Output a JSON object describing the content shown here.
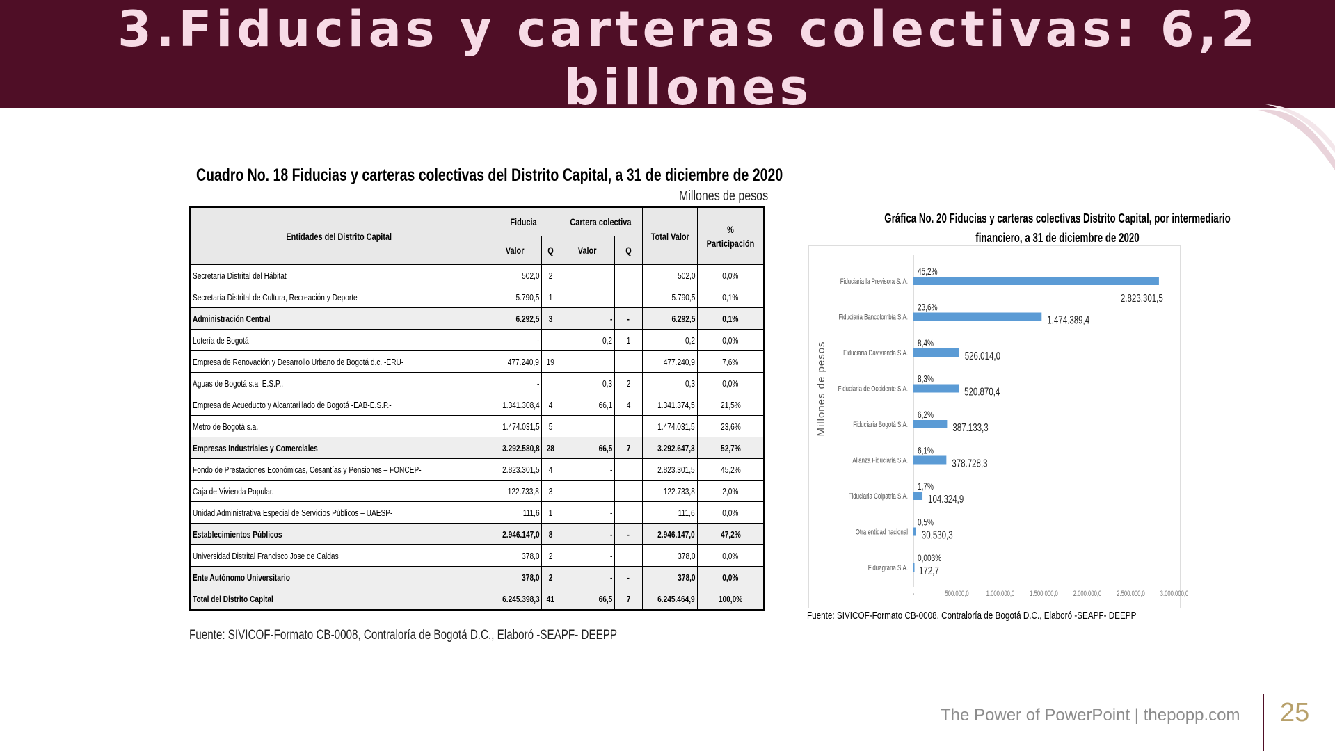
{
  "slide": {
    "title": "3.Fiducias y carteras colectivas: 6,2 billones",
    "footer": "The Power of PowerPoint | thepopp.com",
    "page_number": "25",
    "colors": {
      "banner": "#4f0e26",
      "title": "#f7dbe6",
      "bar": "#5b9bd5"
    }
  },
  "table": {
    "title": "Cuadro No. 18 Fiducias y carteras colectivas del Distrito Capital, a 31 de diciembre de 2020",
    "unit": "Millones de pesos",
    "source": "Fuente: SIVICOF-Formato CB-0008, Contraloría de Bogotá D.C., Elaboró -SEAPF- DEEPP",
    "headers": {
      "entity": "Entidades del Distrito Capital",
      "fiducia": "Fiducia",
      "cartera": "Cartera colectiva",
      "valor": "Valor",
      "q": "Q",
      "total": "Total Valor",
      "pct": "% Participación"
    },
    "rows": [
      {
        "name": "Secretaría Distrital del Hábitat",
        "fv": "502,0",
        "fq": "2",
        "cv": "",
        "cq": "",
        "total": "502,0",
        "pct": "0,0%",
        "bold": false
      },
      {
        "name": "Secretaría Distrital de Cultura, Recreación y Deporte",
        "fv": "5.790,5",
        "fq": "1",
        "cv": "",
        "cq": "",
        "total": "5.790,5",
        "pct": "0,1%",
        "bold": false
      },
      {
        "name": "Administración Central",
        "fv": "6.292,5",
        "fq": "3",
        "cv": "-",
        "cq": "-",
        "total": "6.292,5",
        "pct": "0,1%",
        "bold": true
      },
      {
        "name": "Lotería de Bogotá",
        "fv": "-",
        "fq": "",
        "cv": "0,2",
        "cq": "1",
        "total": "0,2",
        "pct": "0,0%",
        "bold": false
      },
      {
        "name": "Empresa de Renovación y Desarrollo Urbano de Bogotá d.c. -ERU-",
        "fv": "477.240,9",
        "fq": "19",
        "cv": "",
        "cq": "",
        "total": "477.240,9",
        "pct": "7,6%",
        "bold": false
      },
      {
        "name": "Aguas de Bogotá s.a. E.S.P..",
        "fv": "-",
        "fq": "",
        "cv": "0,3",
        "cq": "2",
        "total": "0,3",
        "pct": "0,0%",
        "bold": false
      },
      {
        "name": "Empresa de Acueducto y Alcantarillado de Bogotá -EAB-E.S.P.-",
        "fv": "1.341.308,4",
        "fq": "4",
        "cv": "66,1",
        "cq": "4",
        "total": "1.341.374,5",
        "pct": "21,5%",
        "bold": false
      },
      {
        "name": "Metro de Bogotá s.a.",
        "fv": "1.474.031,5",
        "fq": "5",
        "cv": "",
        "cq": "",
        "total": "1.474.031,5",
        "pct": "23,6%",
        "bold": false
      },
      {
        "name": "Empresas Industriales y Comerciales",
        "fv": "3.292.580,8",
        "fq": "28",
        "cv": "66,5",
        "cq": "7",
        "total": "3.292.647,3",
        "pct": "52,7%",
        "bold": true
      },
      {
        "name": "Fondo de Prestaciones Económicas, Cesantías y Pensiones – FONCEP-",
        "fv": "2.823.301,5",
        "fq": "4",
        "cv": "-",
        "cq": "",
        "total": "2.823.301,5",
        "pct": "45,2%",
        "bold": false
      },
      {
        "name": "Caja de Vivienda Popular.",
        "fv": "122.733,8",
        "fq": "3",
        "cv": "-",
        "cq": "",
        "total": "122.733,8",
        "pct": "2,0%",
        "bold": false
      },
      {
        "name": "Unidad Administrativa Especial de Servicios Públicos – UAESP-",
        "fv": "111,6",
        "fq": "1",
        "cv": "-",
        "cq": "",
        "total": "111,6",
        "pct": "0,0%",
        "bold": false
      },
      {
        "name": "Establecimientos Públicos",
        "fv": "2.946.147,0",
        "fq": "8",
        "cv": "-",
        "cq": "-",
        "total": "2.946.147,0",
        "pct": "47,2%",
        "bold": true
      },
      {
        "name": "Universidad Distrital Francisco Jose de Caldas",
        "fv": "378,0",
        "fq": "2",
        "cv": "-",
        "cq": "",
        "total": "378,0",
        "pct": "0,0%",
        "bold": false
      },
      {
        "name": "Ente Autónomo Universitario",
        "fv": "378,0",
        "fq": "2",
        "cv": "-",
        "cq": "-",
        "total": "378,0",
        "pct": "0,0%",
        "bold": true
      },
      {
        "name": "Total del Distrito Capital",
        "fv": "6.245.398,3",
        "fq": "41",
        "cv": "66,5",
        "cq": "7",
        "total": "6.245.464,9",
        "pct": "100,0%",
        "bold": true
      }
    ]
  },
  "chart_data": {
    "type": "bar",
    "orientation": "horizontal",
    "title": "Gráfica No. 20 Fiducias y carteras colectivas Distrito Capital, por intermediario financiero, a 31 de diciembre de 2020",
    "ylabel": "Millones de pesos",
    "source": "Fuente: SIVICOF-Formato CB-0008, Contraloría de Bogotá D.C., Elaboró -SEAPF- DEEPP",
    "categories": [
      "Fiduciaria la Previsora S. A.",
      "Fiduciaria Bancolombia S.A.",
      "Fiduciaria Davivienda S.A.",
      "Fiduciaria de Occidente S.A.",
      "Fiduciaria Bogotá S.A.",
      "Alianza Fiduciaria S.A.",
      "Fiduciaria Colpatria S.A.",
      "Otra entidad nacional",
      "Fiduagraria S.A."
    ],
    "values": [
      2823301.5,
      1474389.4,
      526014.0,
      520870.4,
      387133.3,
      378728.3,
      104324.9,
      30530.3,
      172.7
    ],
    "value_labels": [
      "2.823.301,5",
      "1.474.389,4",
      "526.014,0",
      "520.870,4",
      "387.133,3",
      "378.728,3",
      "104.324,9",
      "30.530,3",
      "172,7"
    ],
    "pct_labels": [
      "45,2%",
      "23,6%",
      "8,4%",
      "8,3%",
      "6,2%",
      "6,1%",
      "1,7%",
      "0,5%",
      "0,003%"
    ],
    "xticks": [
      "-",
      "500.000,0",
      "1.000.000,0",
      "1.500.000,0",
      "2.000.000,0",
      "2.500.000,0",
      "3.000.000,0"
    ],
    "xlim": [
      0,
      3000000
    ],
    "grid": false,
    "legend": "none"
  }
}
